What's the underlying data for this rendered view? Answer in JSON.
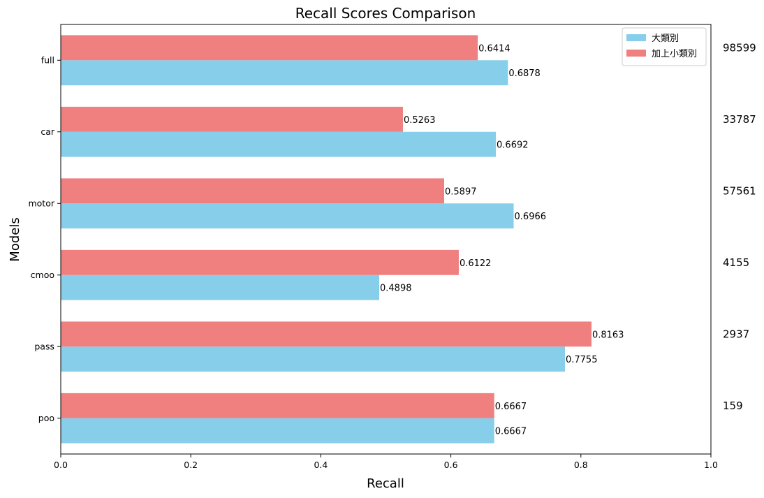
{
  "chart_data": {
    "type": "bar",
    "orientation": "horizontal",
    "title": "Recall Scores Comparison",
    "xlabel": "Recall",
    "ylabel": "Models",
    "xlim": [
      0,
      1
    ],
    "xticks": [
      "0.0",
      "0.2",
      "0.4",
      "0.6",
      "0.8",
      "1.0"
    ],
    "categories": [
      "poo",
      "pass",
      "cmoo",
      "motor",
      "car",
      "full"
    ],
    "series": [
      {
        "name": "大類別",
        "color": "#87CEEB",
        "values": [
          0.6667,
          0.7755,
          0.4898,
          0.6966,
          0.6692,
          0.6878
        ],
        "labels": [
          "0.6667",
          "0.7755",
          "0.4898",
          "0.6966",
          "0.6692",
          "0.6878"
        ]
      },
      {
        "name": "加上小類別",
        "color": "#F08080",
        "values": [
          0.6667,
          0.8163,
          0.6122,
          0.5897,
          0.5263,
          0.6414
        ],
        "labels": [
          "0.6667",
          "0.8163",
          "0.6122",
          "0.5897",
          "0.5263",
          "0.6414"
        ]
      }
    ],
    "counts": [
      "159",
      "2937",
      "4155",
      "57561",
      "33787",
      "98599"
    ],
    "legend": "top-right",
    "grid": false
  }
}
